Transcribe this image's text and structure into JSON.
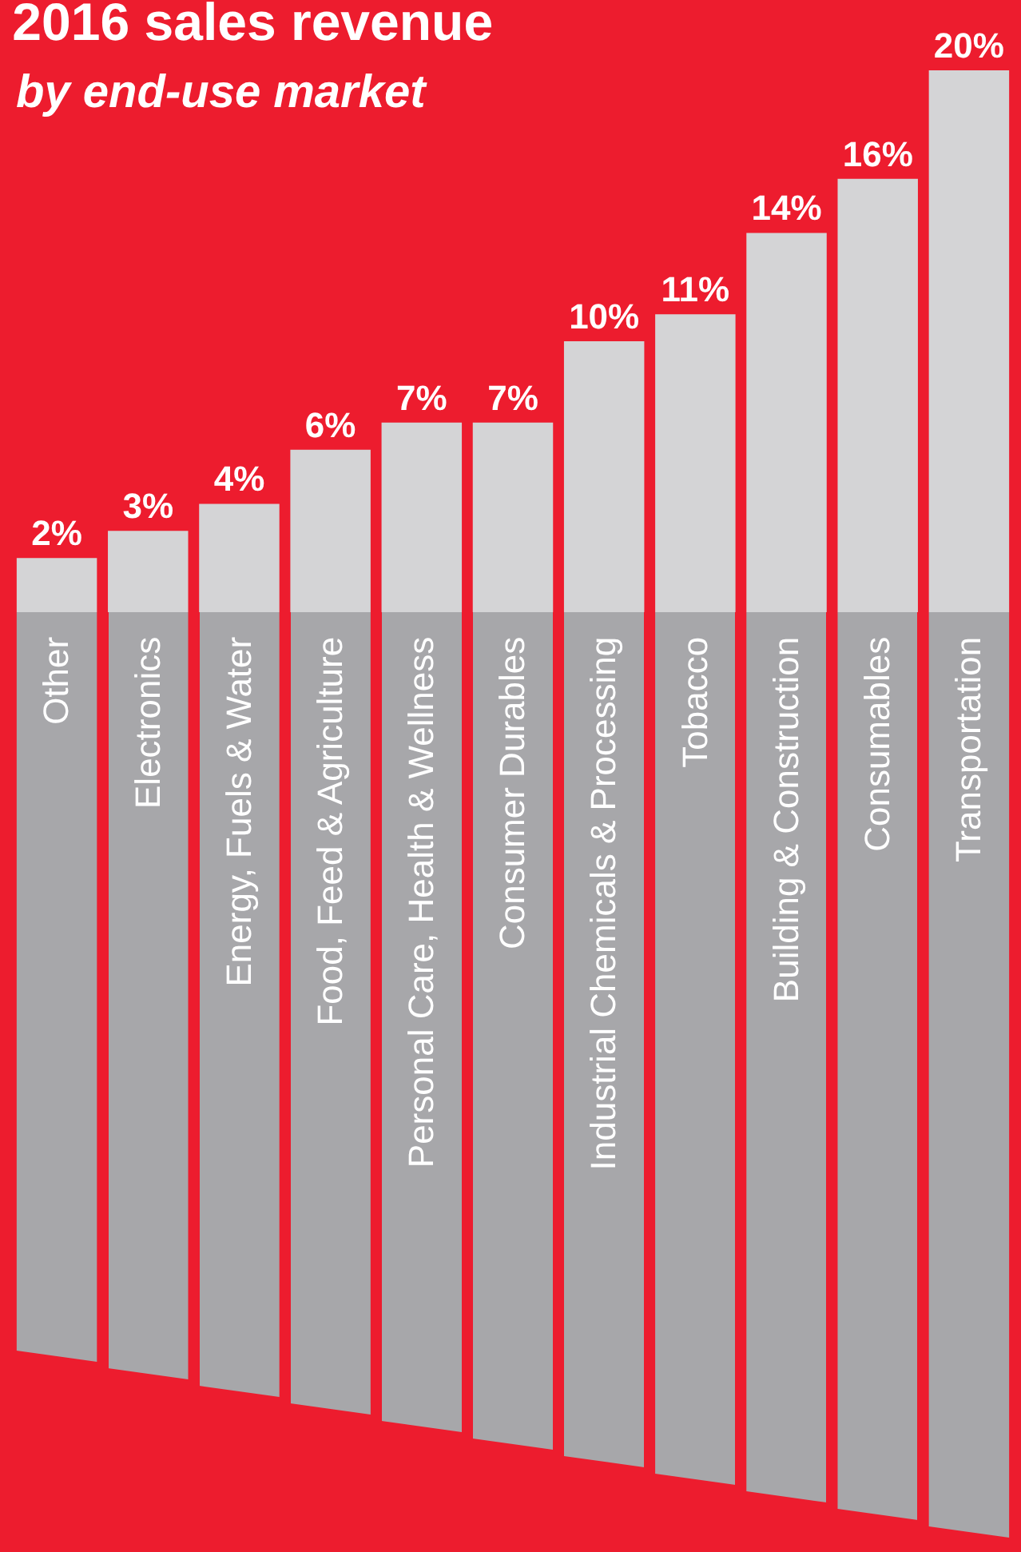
{
  "chart_data": {
    "type": "bar",
    "title": "2016 sales revenue",
    "subtitle": "by end-use market",
    "categories": [
      "Other",
      "Electronics",
      "Energy, Fuels & Water",
      "Food, Feed & Agriculture",
      "Personal Care, Health & Wellness",
      "Consumer Durables",
      "Industrial Chemicals & Processing",
      "Tobacco",
      "Building & Construction",
      "Consumables",
      "Transportation"
    ],
    "values": [
      2,
      3,
      4,
      6,
      7,
      7,
      10,
      11,
      14,
      16,
      20
    ],
    "value_labels": [
      "2%",
      "3%",
      "4%",
      "6%",
      "7%",
      "7%",
      "10%",
      "11%",
      "14%",
      "16%",
      "20%"
    ],
    "color": "#d4d4d6"
  }
}
